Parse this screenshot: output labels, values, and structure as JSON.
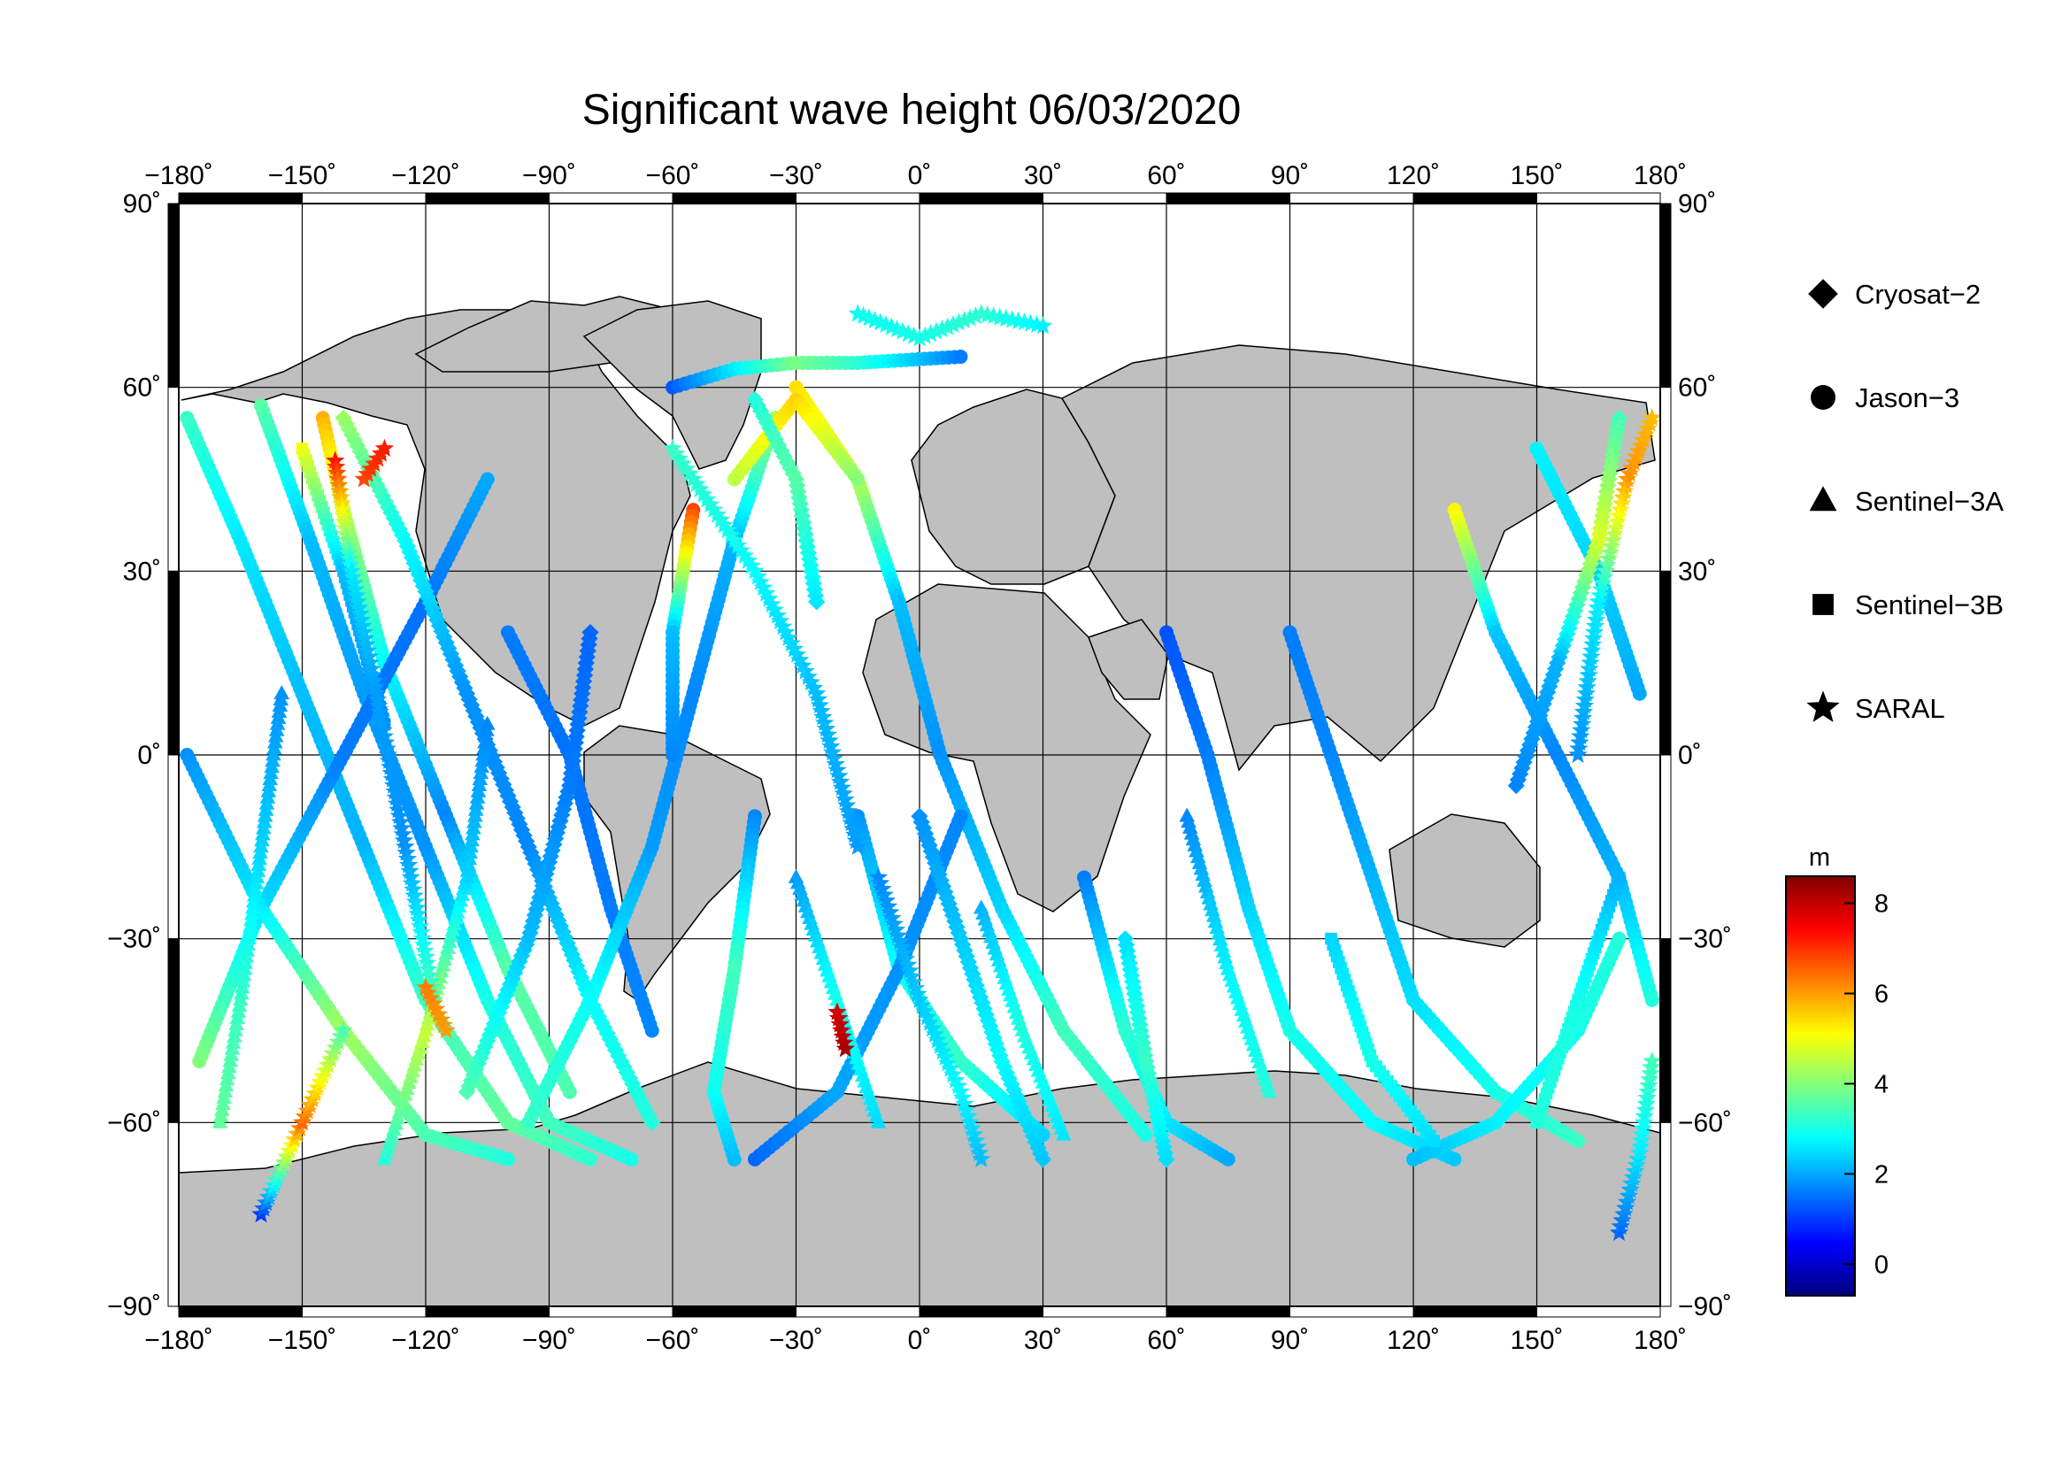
{
  "chart_data": {
    "type": "scatter",
    "title": "Significant wave height 06/03/2020",
    "projection": "equirectangular",
    "xlim": [
      -180,
      180
    ],
    "ylim": [
      -90,
      90
    ],
    "x_ticks": [
      "−180˚",
      "−150˚",
      "−120˚",
      "−90˚",
      "−60˚",
      "−30˚",
      "0˚",
      "30˚",
      "60˚",
      "90˚",
      "120˚",
      "150˚",
      "180˚"
    ],
    "y_ticks": [
      "90˚",
      "60˚",
      "30˚",
      "0˚",
      "−30˚",
      "−60˚",
      "−90˚"
    ],
    "grid": true,
    "legend_position": "right",
    "legend": [
      {
        "name": "Cryosat−2",
        "marker": "diamond"
      },
      {
        "name": "Jason−3",
        "marker": "circle"
      },
      {
        "name": "Sentinel−3A",
        "marker": "triangle"
      },
      {
        "name": "Sentinel−3B",
        "marker": "square"
      },
      {
        "name": "SARAL",
        "marker": "star"
      }
    ],
    "colorbar": {
      "unit": "m",
      "range": [
        -0.7,
        8.6
      ],
      "ticks": [
        "8",
        "6",
        "4",
        "2",
        "0"
      ],
      "tick_values": [
        8,
        6,
        4,
        2,
        0
      ],
      "colors": [
        "#00007f",
        "#0000ff",
        "#007fff",
        "#00ffff",
        "#7fff7f",
        "#ffff00",
        "#ff7f00",
        "#ff0000",
        "#7f0000"
      ]
    },
    "land_color": "#bfbfbf",
    "tracks": [
      {
        "marker": "circle",
        "points": [
          [
            -178,
            55,
            3.3
          ],
          [
            -165,
            35,
            2.6
          ],
          [
            -150,
            10,
            2.2
          ],
          [
            -135,
            -15,
            2.1
          ],
          [
            -120,
            -40,
            3.3
          ],
          [
            -100,
            -60,
            3.7
          ],
          [
            -80,
            -66,
            3.2
          ]
        ]
      },
      {
        "marker": "circle",
        "points": [
          [
            -160,
            57,
            3.6
          ],
          [
            -148,
            35,
            2.2
          ],
          [
            -135,
            10,
            1.9
          ],
          [
            -120,
            -15,
            1.8
          ],
          [
            -105,
            -40,
            3.0
          ],
          [
            -90,
            -60,
            3.4
          ],
          [
            -70,
            -66,
            3.0
          ]
        ]
      },
      {
        "marker": "circle",
        "points": [
          [
            -145,
            55,
            5.8
          ],
          [
            -140,
            40,
            4.4
          ],
          [
            -130,
            15,
            2.8
          ],
          [
            -115,
            -10,
            1.7
          ],
          [
            -100,
            -35,
            3.6
          ],
          [
            -85,
            -55,
            3.5
          ]
        ]
      },
      {
        "marker": "circle",
        "points": [
          [
            -175,
            -50,
            4.0
          ],
          [
            -160,
            -25,
            2.5
          ],
          [
            -140,
            0,
            1.6
          ],
          [
            -120,
            25,
            1.5
          ],
          [
            -105,
            45,
            2.0
          ]
        ]
      },
      {
        "marker": "circle",
        "points": [
          [
            -178,
            0,
            1.8
          ],
          [
            -160,
            -25,
            2.6
          ],
          [
            -140,
            -45,
            4.3
          ],
          [
            -120,
            -62,
            3.5
          ],
          [
            -100,
            -66,
            3.1
          ]
        ]
      },
      {
        "marker": "circle",
        "points": [
          [
            -100,
            20,
            1.6
          ],
          [
            -85,
            0,
            1.5
          ],
          [
            -75,
            -25,
            1.6
          ],
          [
            -65,
            -45,
            1.7
          ]
        ]
      },
      {
        "marker": "circle",
        "points": [
          [
            -95,
            -60,
            3.3
          ],
          [
            -80,
            -40,
            2.9
          ],
          [
            -65,
            -15,
            1.9
          ],
          [
            -55,
            10,
            1.7
          ],
          [
            -45,
            35,
            2.1
          ],
          [
            -35,
            55,
            4.3
          ]
        ]
      },
      {
        "marker": "circle",
        "points": [
          [
            -55,
            40,
            6.8
          ],
          [
            -60,
            20,
            2.2
          ],
          [
            -60,
            0,
            1.7
          ]
        ]
      },
      {
        "marker": "circle",
        "points": [
          [
            -40,
            -10,
            1.7
          ],
          [
            -45,
            -35,
            3.4
          ],
          [
            -50,
            -55,
            2.9
          ],
          [
            -45,
            -66,
            2.2
          ]
        ]
      },
      {
        "marker": "circle",
        "points": [
          [
            -60,
            60,
            1.3
          ],
          [
            -45,
            63,
            2.6
          ],
          [
            -30,
            64,
            3.9
          ],
          [
            -15,
            64,
            3.2
          ],
          [
            10,
            65,
            1.6
          ]
        ]
      },
      {
        "marker": "circle",
        "points": [
          [
            -30,
            60,
            5.4
          ],
          [
            -15,
            45,
            4.5
          ],
          [
            -5,
            25,
            2.2
          ],
          [
            5,
            0,
            1.8
          ],
          [
            20,
            -25,
            2.4
          ],
          [
            35,
            -45,
            3.4
          ],
          [
            55,
            -62,
            3.0
          ]
        ]
      },
      {
        "marker": "circle",
        "points": [
          [
            -45,
            45,
            4.5
          ],
          [
            -30,
            58,
            5.5
          ],
          [
            -15,
            45,
            4.0
          ]
        ]
      },
      {
        "marker": "circle",
        "points": [
          [
            -15,
            -10,
            1.8
          ],
          [
            -5,
            -35,
            2.9
          ],
          [
            10,
            -50,
            3.3
          ],
          [
            30,
            -62,
            2.4
          ]
        ]
      },
      {
        "marker": "circle",
        "points": [
          [
            -40,
            -66,
            1.4
          ],
          [
            -20,
            -55,
            2.0
          ],
          [
            -5,
            -35,
            1.8
          ],
          [
            10,
            -10,
            1.7
          ]
        ]
      },
      {
        "marker": "circle",
        "points": [
          [
            40,
            -20,
            1.6
          ],
          [
            50,
            -45,
            3.2
          ],
          [
            60,
            -60,
            2.6
          ],
          [
            75,
            -66,
            2.0
          ]
        ]
      },
      {
        "marker": "circle",
        "points": [
          [
            60,
            20,
            1.2
          ],
          [
            70,
            0,
            1.6
          ],
          [
            80,
            -25,
            2.4
          ],
          [
            90,
            -45,
            3.0
          ],
          [
            110,
            -60,
            2.8
          ],
          [
            130,
            -66,
            2.3
          ]
        ]
      },
      {
        "marker": "circle",
        "points": [
          [
            90,
            20,
            1.6
          ],
          [
            100,
            0,
            1.7
          ],
          [
            110,
            -20,
            2.1
          ],
          [
            120,
            -40,
            2.5
          ],
          [
            140,
            -55,
            3.0
          ],
          [
            160,
            -63,
            3.3
          ]
        ]
      },
      {
        "marker": "circle",
        "points": [
          [
            150,
            50,
            2.7
          ],
          [
            165,
            30,
            2.4
          ],
          [
            175,
            10,
            2.0
          ]
        ]
      },
      {
        "marker": "circle",
        "points": [
          [
            170,
            -30,
            3.1
          ],
          [
            160,
            -45,
            3.0
          ],
          [
            140,
            -60,
            2.7
          ],
          [
            120,
            -66,
            2.2
          ]
        ]
      },
      {
        "marker": "circle",
        "points": [
          [
            130,
            40,
            5.2
          ],
          [
            140,
            20,
            2.3
          ],
          [
            155,
            0,
            1.7
          ],
          [
            170,
            -20,
            2.1
          ],
          [
            178,
            -40,
            3.1
          ]
        ]
      },
      {
        "marker": "diamond",
        "points": [
          [
            -140,
            55,
            4.2
          ],
          [
            -125,
            35,
            2.8
          ],
          [
            -110,
            10,
            1.8
          ],
          [
            -95,
            -15,
            1.7
          ],
          [
            -80,
            -40,
            2.8
          ],
          [
            -65,
            -60,
            3.1
          ]
        ]
      },
      {
        "marker": "diamond",
        "points": [
          [
            -110,
            -55,
            3.5
          ],
          [
            -95,
            -30,
            2.2
          ],
          [
            -85,
            -5,
            1.6
          ],
          [
            -80,
            20,
            1.4
          ]
        ]
      },
      {
        "marker": "diamond",
        "points": [
          [
            0,
            -10,
            1.8
          ],
          [
            10,
            -30,
            2.3
          ],
          [
            20,
            -50,
            2.8
          ],
          [
            30,
            -66,
            2.3
          ]
        ]
      },
      {
        "marker": "diamond",
        "points": [
          [
            50,
            -30,
            2.5
          ],
          [
            55,
            -50,
            3.3
          ],
          [
            60,
            -66,
            2.5
          ]
        ]
      },
      {
        "marker": "diamond",
        "points": [
          [
            170,
            55,
            3.4
          ],
          [
            165,
            35,
            4.8
          ],
          [
            155,
            15,
            2.1
          ],
          [
            145,
            -5,
            1.7
          ]
        ]
      },
      {
        "marker": "diamond",
        "points": [
          [
            -40,
            58,
            3.1
          ],
          [
            -30,
            45,
            3.6
          ],
          [
            -25,
            25,
            2.6
          ]
        ]
      },
      {
        "marker": "triangle",
        "points": [
          [
            -170,
            -60,
            3.7
          ],
          [
            -165,
            -40,
            3.3
          ],
          [
            -160,
            -15,
            2.4
          ],
          [
            -155,
            10,
            1.8
          ]
        ]
      },
      {
        "marker": "triangle",
        "points": [
          [
            -130,
            -66,
            3.1
          ],
          [
            -120,
            -45,
            4.6
          ],
          [
            -110,
            -20,
            2.4
          ],
          [
            -105,
            5,
            1.7
          ]
        ]
      },
      {
        "marker": "triangle",
        "points": [
          [
            -30,
            -20,
            1.9
          ],
          [
            -20,
            -40,
            3.0
          ],
          [
            -10,
            -60,
            2.5
          ]
        ]
      },
      {
        "marker": "triangle",
        "points": [
          [
            15,
            -25,
            2.1
          ],
          [
            25,
            -45,
            3.1
          ],
          [
            35,
            -62,
            2.6
          ]
        ]
      },
      {
        "marker": "triangle",
        "points": [
          [
            65,
            -10,
            1.7
          ],
          [
            75,
            -35,
            2.7
          ],
          [
            85,
            -55,
            3.1
          ]
        ]
      },
      {
        "marker": "square",
        "points": [
          [
            -150,
            50,
            5.0
          ],
          [
            -140,
            30,
            2.2
          ],
          [
            -130,
            5,
            1.7
          ]
        ]
      },
      {
        "marker": "square",
        "points": [
          [
            100,
            -30,
            2.4
          ],
          [
            110,
            -50,
            3.0
          ],
          [
            125,
            -63,
            2.5
          ]
        ]
      },
      {
        "marker": "square",
        "points": [
          [
            150,
            -60,
            3.1
          ],
          [
            160,
            -40,
            3.0
          ],
          [
            170,
            -20,
            2.1
          ]
        ]
      },
      {
        "marker": "star",
        "points": [
          [
            -142,
            48,
            7.3
          ],
          [
            -138,
            30,
            2.6
          ],
          [
            -132,
            10,
            1.9
          ],
          [
            -125,
            -15,
            1.8
          ],
          [
            -118,
            -40,
            3.5
          ]
        ]
      },
      {
        "marker": "star",
        "points": [
          [
            -120,
            -38,
            6.3
          ],
          [
            -115,
            -45,
            6.0
          ]
        ]
      },
      {
        "marker": "star",
        "points": [
          [
            -160,
            -75,
            1.0
          ],
          [
            -150,
            -60,
            6.5
          ],
          [
            -140,
            -45,
            3.5
          ]
        ]
      },
      {
        "marker": "star",
        "points": [
          [
            -135,
            45,
            6.8
          ],
          [
            -130,
            50,
            7.2
          ]
        ]
      },
      {
        "marker": "star",
        "points": [
          [
            -20,
            -42,
            7.8
          ],
          [
            -18,
            -48,
            8.2
          ]
        ]
      },
      {
        "marker": "star",
        "points": [
          [
            -15,
            72,
            2.9
          ],
          [
            0,
            68,
            3.0
          ],
          [
            15,
            72,
            3.2
          ],
          [
            30,
            70,
            2.7
          ]
        ]
      },
      {
        "marker": "star",
        "points": [
          [
            -10,
            -20,
            1.7
          ],
          [
            0,
            -40,
            2.3
          ],
          [
            10,
            -55,
            2.8
          ],
          [
            15,
            -66,
            2.2
          ]
        ]
      },
      {
        "marker": "star",
        "points": [
          [
            170,
            -78,
            1.4
          ],
          [
            175,
            -65,
            2.6
          ],
          [
            178,
            -50,
            3.4
          ]
        ]
      },
      {
        "marker": "star",
        "points": [
          [
            178,
            55,
            5.7
          ],
          [
            172,
            45,
            6.1
          ],
          [
            165,
            25,
            2.7
          ],
          [
            160,
            0,
            1.8
          ]
        ]
      },
      {
        "marker": "star",
        "points": [
          [
            -60,
            50,
            3.3
          ],
          [
            -40,
            30,
            2.8
          ],
          [
            -25,
            10,
            2.2
          ],
          [
            -15,
            -15,
            1.9
          ]
        ]
      }
    ]
  }
}
